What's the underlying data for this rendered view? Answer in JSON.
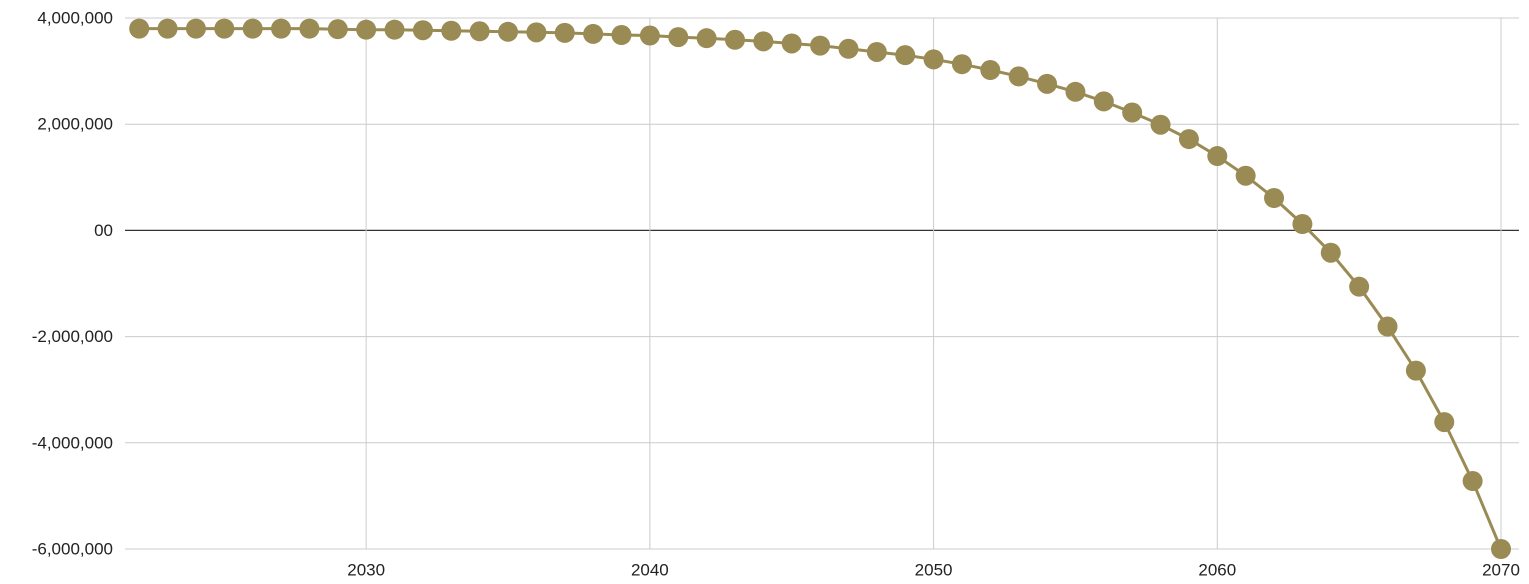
{
  "chart_data": {
    "type": "line",
    "title": "",
    "xlabel": "",
    "ylabel": "",
    "xlim": [
      2021.5,
      2070
    ],
    "ylim": [
      -6000000,
      4000000
    ],
    "x_ticks": [
      2030,
      2040,
      2050,
      2060,
      2070
    ],
    "x_tick_labels": [
      "2030",
      "2040",
      "2050",
      "2060",
      "2070"
    ],
    "y_ticks": [
      4000000,
      2000000,
      0,
      -2000000,
      -4000000,
      -6000000
    ],
    "y_tick_labels": [
      "4,000,000",
      "2,000,000",
      "00",
      "-2,000,000",
      "-4,000,000",
      "-6,000,000"
    ],
    "grid": true,
    "legend": "none",
    "colors": {
      "series": "#9a8b55",
      "grid": "#cccccc",
      "zero_line": "#333333"
    },
    "series": [
      {
        "x": [
          2022,
          2023,
          2024,
          2025,
          2026,
          2027,
          2028,
          2029,
          2030,
          2031,
          2032,
          2033,
          2034,
          2035,
          2036,
          2037,
          2038,
          2039,
          2040,
          2041,
          2042,
          2043,
          2044,
          2045,
          2046,
          2047,
          2048,
          2049,
          2050,
          2051,
          2052,
          2053,
          2054,
          2055,
          2056,
          2057,
          2058,
          2059,
          2060,
          2061,
          2062,
          2063,
          2064,
          2065,
          2066,
          2067,
          2068,
          2069,
          2070
        ],
        "values": [
          3800000,
          3800000,
          3800000,
          3800000,
          3800000,
          3800000,
          3800000,
          3790000,
          3780000,
          3780000,
          3770000,
          3760000,
          3750000,
          3740000,
          3730000,
          3720000,
          3700000,
          3680000,
          3670000,
          3640000,
          3620000,
          3590000,
          3560000,
          3520000,
          3480000,
          3420000,
          3360000,
          3300000,
          3220000,
          3130000,
          3020000,
          2900000,
          2760000,
          2610000,
          2430000,
          2220000,
          1990000,
          1720000,
          1400000,
          1030000,
          610000,
          120000,
          -420000,
          -1060000,
          -1810000,
          -2640000,
          -3610000,
          -4720000,
          -6000000
        ]
      }
    ]
  }
}
